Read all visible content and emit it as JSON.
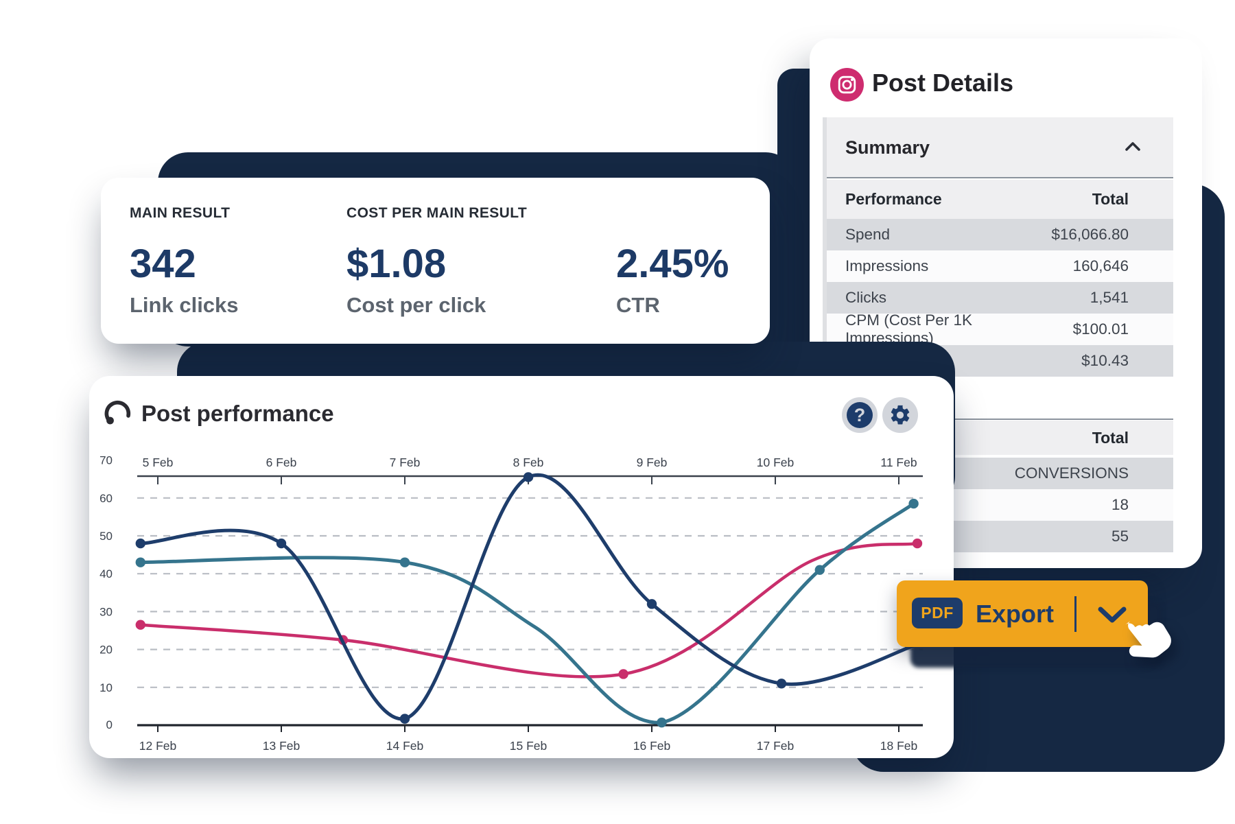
{
  "colors": {
    "navy_shape": "#152843",
    "navy_text": "#1d3a66",
    "orange": "#f0a41c",
    "instagram_pink": "#ce2c6f",
    "row_dark": "#d8dade",
    "row_light": "#fbfbfc",
    "band": "#efeff1",
    "grid": "#b9bdc4"
  },
  "stats_card": {
    "items": [
      {
        "label": "MAIN RESULT",
        "value": "342",
        "sublabel": "Link clicks"
      },
      {
        "label": "COST PER MAIN RESULT",
        "value": "$1.08",
        "sublabel": "Cost per click"
      },
      {
        "label": "",
        "value": "2.45%",
        "sublabel": "CTR"
      }
    ]
  },
  "post_details": {
    "title": "Post Details",
    "icon": "instagram-icon",
    "summary_label": "Summary",
    "performance_table": {
      "col_label": "Performance",
      "col_total": "Total",
      "rows": [
        {
          "label": "Spend",
          "value": "$16,066.80",
          "shade": "dark"
        },
        {
          "label": "Impressions",
          "value": "160,646",
          "shade": "light"
        },
        {
          "label": "Clicks",
          "value": "1,541",
          "shade": "dark"
        },
        {
          "label": "CPM (Cost Per 1K Impressions)",
          "value": "$100.01",
          "shade": "light"
        },
        {
          "label": "",
          "value": "$10.43",
          "shade": "dark"
        }
      ]
    },
    "totals_table": {
      "header": "Total",
      "rows": [
        {
          "value": "CONVERSIONS",
          "shade": "dark"
        },
        {
          "value": "18",
          "shade": "light"
        },
        {
          "value": "55",
          "shade": "dark"
        }
      ]
    }
  },
  "export_button": {
    "pdf_badge": "PDF",
    "label": "Export"
  },
  "chart": {
    "title": "Post performance",
    "icon": "gauge-icon",
    "buttons": [
      {
        "name": "help-button",
        "glyph": "?"
      },
      {
        "name": "settings-button",
        "glyph": "gear"
      }
    ],
    "chart_data": {
      "type": "line",
      "title": "Post performance",
      "x_axis_top": {
        "labels": [
          "5 Feb",
          "6 Feb",
          "7 Feb",
          "8 Feb",
          "9 Feb",
          "10 Feb",
          "11 Feb"
        ]
      },
      "x_axis_bottom": {
        "labels": [
          "12 Feb",
          "13 Feb",
          "14 Feb",
          "15 Feb",
          "16 Feb",
          "17 Feb",
          "18 Feb"
        ]
      },
      "y_axis": {
        "min": 0,
        "max": 70,
        "step": 10,
        "labels": [
          "0",
          "10",
          "20",
          "30",
          "40",
          "50",
          "60",
          "70"
        ]
      },
      "grid": "horizontal-dashed",
      "legend": "none",
      "series": [
        {
          "name": "pink-series",
          "color": "#c92e6b",
          "width": 4.5,
          "points": [
            {
              "x": -0.14,
              "v": 26.5,
              "dot": true
            },
            {
              "x": 1.5,
              "v": 22.5,
              "dot": true
            },
            {
              "x": 3.77,
              "v": 13.5,
              "dot": true
            },
            {
              "x": 5.3,
              "v": 43.5,
              "dot": false
            },
            {
              "x": 6.15,
              "v": 48,
              "dot": true
            }
          ]
        },
        {
          "name": "teal-series",
          "color": "#35748d",
          "width": 5,
          "points": [
            {
              "x": -0.14,
              "v": 43,
              "dot": true
            },
            {
              "x": 2,
              "v": 43,
              "dot": true
            },
            {
              "x": 3.05,
              "v": 26,
              "dot": false
            },
            {
              "x": 4.08,
              "v": 0.7,
              "dot": true
            },
            {
              "x": 5.36,
              "v": 41,
              "dot": true
            },
            {
              "x": 6.12,
              "v": 58.5,
              "dot": true
            }
          ]
        },
        {
          "name": "navy-series",
          "color": "#1e3d6b",
          "width": 5,
          "points": [
            {
              "x": -0.14,
              "v": 48,
              "dot": true
            },
            {
              "x": 1,
              "v": 48,
              "dot": true
            },
            {
              "x": 2,
              "v": 1.7,
              "dot": true
            },
            {
              "x": 3,
              "v": 65.5,
              "dot": true
            },
            {
              "x": 4,
              "v": 32,
              "dot": true
            },
            {
              "x": 5.05,
              "v": 11,
              "dot": true
            },
            {
              "x": 6.2,
              "v": 22,
              "dot": false
            }
          ]
        }
      ]
    }
  }
}
